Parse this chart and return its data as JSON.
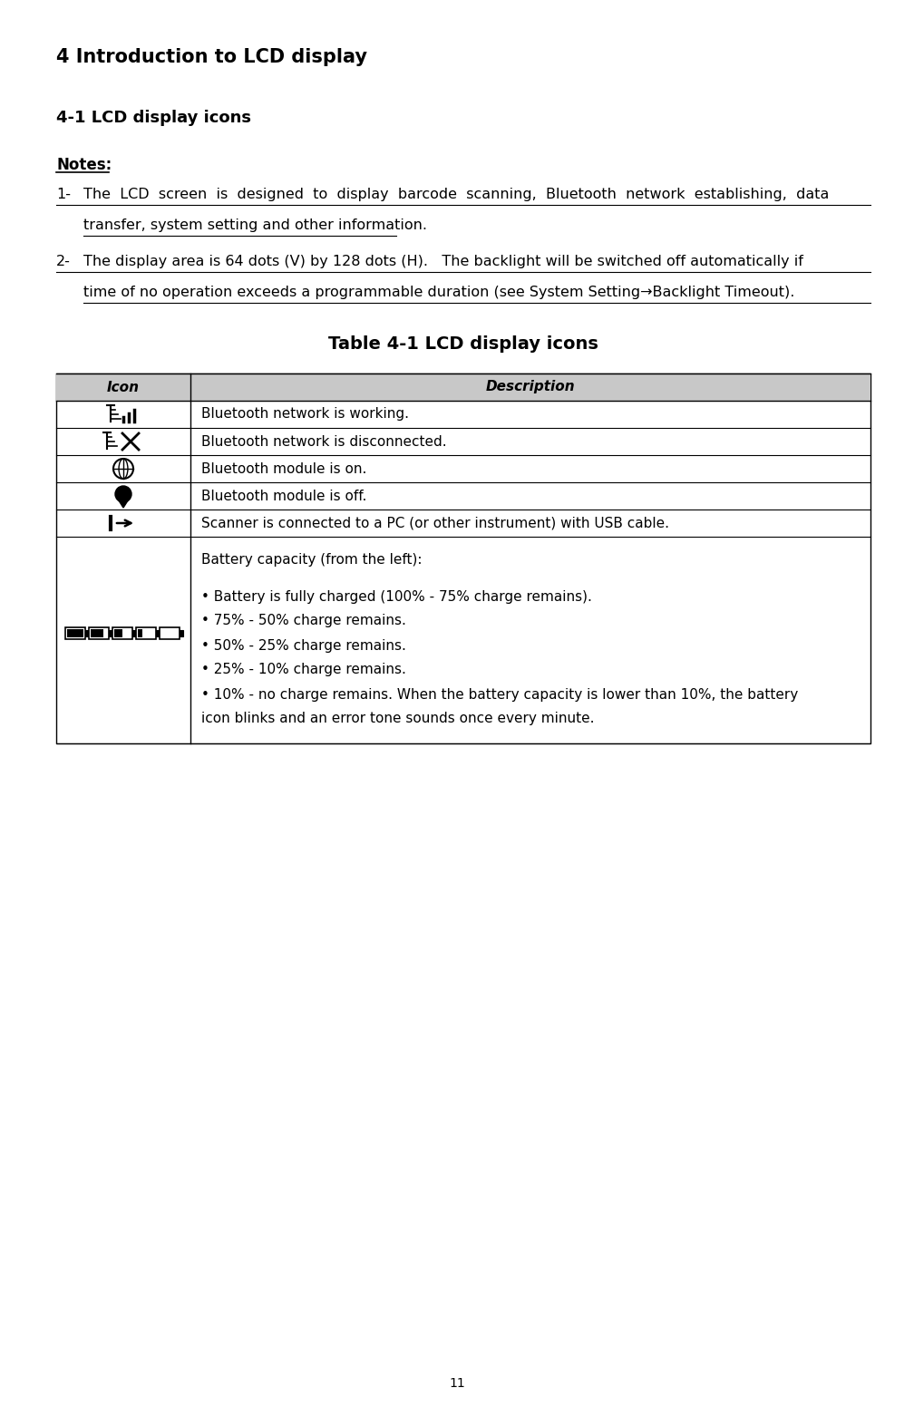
{
  "page_number": "11",
  "title_h1": "4 Introduction to LCD display",
  "title_h2": "4-1 LCD display icons",
  "notes_label": "Notes:",
  "note1_label": "1-",
  "note1_line1": "The  LCD  screen  is  designed  to  display  barcode  scanning,  Bluetooth  network  establishing,  data",
  "note1_line2": "transfer, system setting and other information. ",
  "note2_label": "2-",
  "note2_line1": "The display area is 64 dots (V) by 128 dots (H).   The backlight will be switched off automatically if",
  "note2_line2": "time of no operation exceeds a programmable duration (see System Setting→Backlight Timeout).",
  "table_title": "Table 4-1 LCD display icons",
  "col_header_icon": "Icon",
  "col_header_desc": "Description",
  "desc_rows": [
    "Bluetooth network is working.",
    "Bluetooth network is disconnected.",
    "Bluetooth module is on.",
    "Bluetooth module is off.",
    "Scanner is connected to a PC (or other instrument) with USB cable."
  ],
  "battery_desc_lines": [
    "Battery capacity (from the left):",
    "",
    "• Battery is fully charged (100% - 75% charge remains).",
    "• 75% - 50% charge remains.",
    "• 50% - 25% charge remains.",
    "• 25% - 10% charge remains.",
    "• 10% - no charge remains. When the battery capacity is lower than 10%, the battery",
    "icon blinks and an error tone sounds once every minute."
  ],
  "bg_color": "#ffffff",
  "text_color": "#000000",
  "header_bg": "#c8c8c8",
  "table_border_color": "#000000",
  "font_size_h1": 15,
  "font_size_h2": 13,
  "font_size_notes_label": 12,
  "font_size_notes": 11.5,
  "font_size_table_header": 11,
  "font_size_table": 11,
  "font_size_page": 10
}
